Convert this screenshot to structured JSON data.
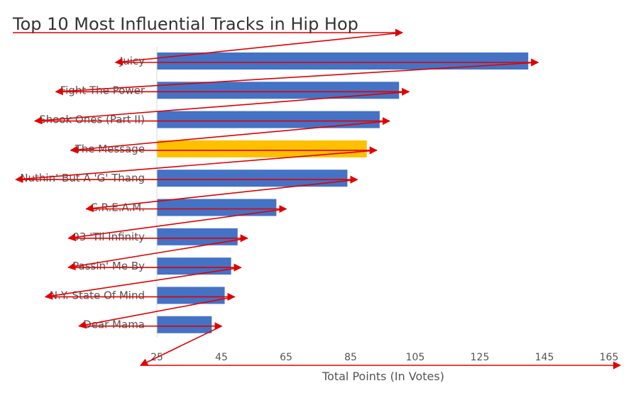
{
  "chart_data": {
    "type": "bar",
    "orientation": "horizontal",
    "title": "Top 10 Most Influential Tracks in Hip Hop",
    "xlabel": "Total Points (In Votes)",
    "ylabel": "",
    "categories": [
      "Juicy",
      "Fight The Power",
      "Shook Ones (Part II)",
      "The Message",
      "Nuthin' But A 'G' Thang",
      "C.R.E.A.M.",
      "93 'Til Infinity",
      "Passin' Me By",
      "N.Y. State Of Mind",
      "Dear Mama"
    ],
    "values": [
      140,
      100,
      94,
      90,
      84,
      62,
      50,
      48,
      46,
      42
    ],
    "highlight_index": 3,
    "xlim": [
      25,
      165
    ],
    "xticks": [
      25,
      45,
      65,
      85,
      105,
      125,
      145,
      165
    ],
    "grid": false,
    "colors": {
      "bar": "#4472C4",
      "highlight": "#FFC000",
      "axis": "#D9D9D9",
      "annotation_arrows": "#E00000"
    }
  }
}
